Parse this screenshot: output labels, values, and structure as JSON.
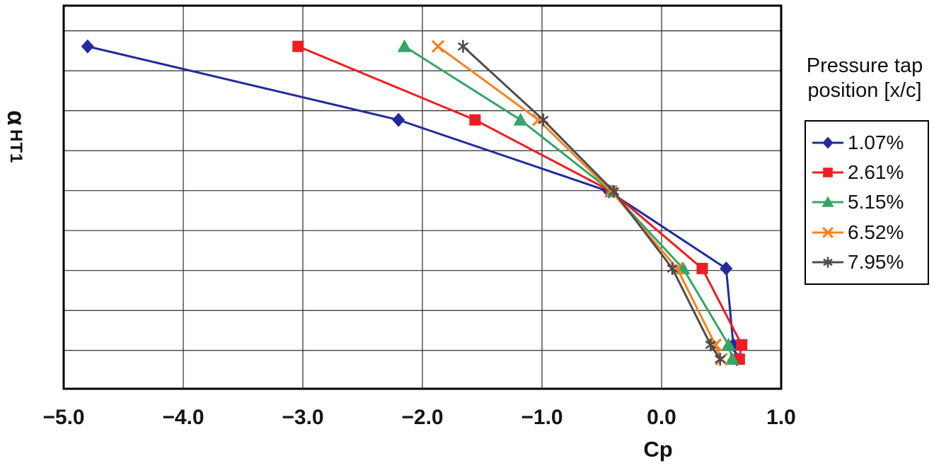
{
  "chart_data": {
    "type": "line",
    "title": "",
    "xlabel": "Cp",
    "ylabel": {
      "main": "α",
      "sub": "HT1"
    },
    "xlim": [
      -5.0,
      1.0
    ],
    "ylim": [
      0,
      9.59
    ],
    "grid": true,
    "x_gridlines": [
      -4.0,
      -3.0,
      -2.0,
      -1.0,
      0.0
    ],
    "y_gridlines": [
      0.96,
      1.96,
      2.96,
      3.96,
      4.96,
      5.96,
      6.96,
      7.96,
      8.96
    ],
    "xticks": [
      {
        "value": -5.0,
        "label": "−5.0"
      },
      {
        "value": -4.0,
        "label": "−4.0"
      },
      {
        "value": -3.0,
        "label": "−3.0"
      },
      {
        "value": -2.0,
        "label": "−2.0"
      },
      {
        "value": -1.0,
        "label": "−1.0"
      },
      {
        "value": 0.0,
        "label": "0.0"
      },
      {
        "value": 1.0,
        "label": "1.0"
      }
    ],
    "legend": {
      "title_line1": "Pressure tap",
      "title_line2": "position [x/c]",
      "position": "right"
    },
    "series": [
      {
        "name": "1.07%",
        "color": "#222A9E",
        "marker": "diamond",
        "points": [
          [
            -4.8,
            8.57
          ],
          [
            -2.2,
            6.73
          ],
          [
            -0.44,
            4.94
          ],
          [
            0.54,
            3.01
          ],
          [
            0.6,
            1.1
          ],
          [
            0.63,
            0.74
          ]
        ]
      },
      {
        "name": "2.61%",
        "color": "#EE1D23",
        "marker": "square",
        "points": [
          [
            -3.04,
            8.57
          ],
          [
            -1.56,
            6.73
          ],
          [
            -0.42,
            4.94
          ],
          [
            0.34,
            3.01
          ],
          [
            0.67,
            1.1
          ],
          [
            0.65,
            0.74
          ]
        ]
      },
      {
        "name": "5.15%",
        "color": "#35A567",
        "marker": "triangle",
        "points": [
          [
            -2.15,
            8.57
          ],
          [
            -1.18,
            6.73
          ],
          [
            -0.42,
            4.94
          ],
          [
            0.18,
            3.01
          ],
          [
            0.56,
            1.1
          ],
          [
            0.59,
            0.74
          ]
        ]
      },
      {
        "name": "6.52%",
        "color": "#F6821F",
        "marker": "x",
        "points": [
          [
            -1.87,
            8.57
          ],
          [
            -1.03,
            6.73
          ],
          [
            -0.42,
            4.94
          ],
          [
            0.13,
            3.01
          ],
          [
            0.45,
            1.1
          ],
          [
            0.5,
            0.74
          ]
        ]
      },
      {
        "name": "7.95%",
        "color": "#4D4D4D",
        "marker": "star",
        "points": [
          [
            -1.66,
            8.57
          ],
          [
            -0.99,
            6.73
          ],
          [
            -0.4,
            4.94
          ],
          [
            0.09,
            3.01
          ],
          [
            0.41,
            1.1
          ],
          [
            0.49,
            0.74
          ]
        ]
      }
    ]
  }
}
